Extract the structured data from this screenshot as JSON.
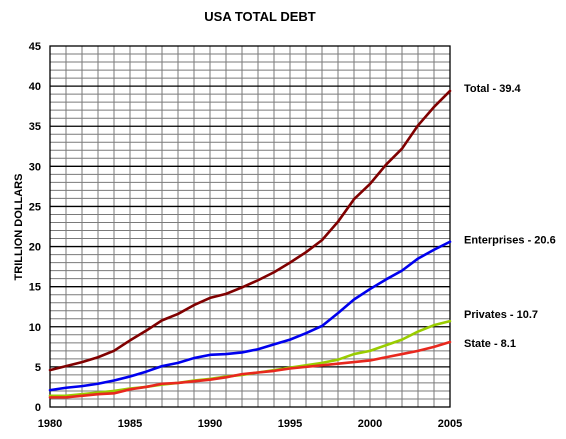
{
  "chart_data": {
    "type": "line",
    "title": "USA TOTAL DEBT",
    "xlabel": "",
    "ylabel": "TRILLION DOLLARS",
    "xlim": [
      1980,
      2005
    ],
    "ylim": [
      0,
      45
    ],
    "x_ticks": [
      "1980",
      "1985",
      "1990",
      "1995",
      "2000",
      "2005"
    ],
    "y_ticks": [
      "0",
      "5",
      "10",
      "15",
      "20",
      "25",
      "30",
      "35",
      "40",
      "45"
    ],
    "grid": true,
    "legend": "none",
    "x": [
      1980,
      1981,
      1982,
      1983,
      1984,
      1985,
      1986,
      1987,
      1988,
      1989,
      1990,
      1991,
      1992,
      1993,
      1994,
      1995,
      1996,
      1997,
      1998,
      1999,
      2000,
      2001,
      2002,
      2003,
      2004,
      2005
    ],
    "series": [
      {
        "name": "Total",
        "end_label": "Total - 39.4",
        "color": "#800000",
        "values": [
          4.6,
          5.1,
          5.6,
          6.2,
          7.0,
          8.3,
          9.5,
          10.8,
          11.6,
          12.7,
          13.6,
          14.1,
          14.9,
          15.8,
          16.8,
          18.0,
          19.3,
          20.8,
          23.1,
          25.9,
          27.8,
          30.2,
          32.2,
          35.1,
          37.4,
          39.4
        ]
      },
      {
        "name": "Enterprises",
        "end_label": "Enterprises - 20.6",
        "color": "#0000ee",
        "values": [
          2.1,
          2.4,
          2.6,
          2.9,
          3.3,
          3.8,
          4.4,
          5.1,
          5.5,
          6.1,
          6.5,
          6.6,
          6.8,
          7.2,
          7.8,
          8.4,
          9.2,
          10.1,
          11.7,
          13.4,
          14.7,
          15.9,
          17.0,
          18.5,
          19.6,
          20.6
        ]
      },
      {
        "name": "Privates",
        "end_label": "Privates - 10.7",
        "color": "#99cc00",
        "values": [
          1.4,
          1.4,
          1.6,
          1.8,
          2.0,
          2.3,
          2.5,
          2.8,
          3.0,
          3.3,
          3.5,
          3.8,
          4.0,
          4.3,
          4.6,
          4.9,
          5.2,
          5.5,
          5.9,
          6.6,
          7.0,
          7.7,
          8.4,
          9.4,
          10.2,
          10.7
        ]
      },
      {
        "name": "State",
        "end_label": "State - 8.1",
        "color": "#e8281e",
        "values": [
          1.2,
          1.2,
          1.4,
          1.6,
          1.7,
          2.2,
          2.5,
          2.9,
          3.0,
          3.2,
          3.4,
          3.7,
          4.1,
          4.3,
          4.5,
          4.8,
          5.0,
          5.2,
          5.4,
          5.6,
          5.8,
          6.2,
          6.6,
          7.0,
          7.5,
          8.1
        ]
      }
    ]
  }
}
